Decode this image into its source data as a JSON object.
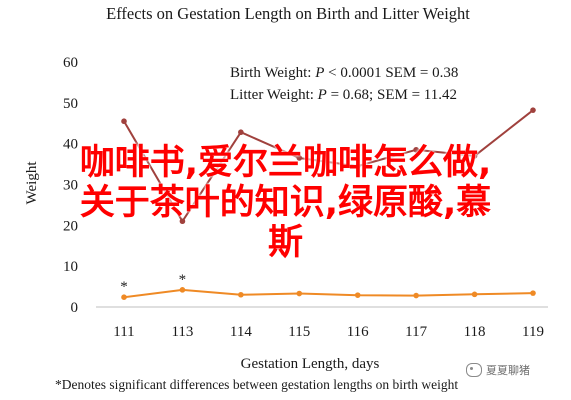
{
  "chart_data": {
    "type": "line",
    "title": "Effects on Gestation Length on Birth and Litter Weight",
    "xlabel": "Gestation Length, days",
    "ylabel": "Weight",
    "x_ticks": [
      "111",
      "113",
      "114",
      "115",
      "116",
      "117",
      "118",
      "119"
    ],
    "x_positions": [
      111,
      113,
      114,
      115,
      116,
      117,
      118,
      119
    ],
    "ylim": [
      0,
      60
    ],
    "y_ticks": [
      0,
      10,
      20,
      30,
      40,
      50,
      60
    ],
    "grid": false,
    "legend_position": "top-right",
    "stats_box": {
      "line1_prefix": "Birth Weight: ",
      "line1_var": "P",
      "line1_suffix": " < 0.0001 SEM = 0.38",
      "line2_prefix": "Litter Weight: ",
      "line2_var": "P",
      "line2_suffix": " = 0.68; SEM = 11.42"
    },
    "series": [
      {
        "name": "Litter Weight",
        "color": "#a0413d",
        "values": [
          45.5,
          21.0,
          42.8,
          36.5,
          34.5,
          38.5,
          37.0,
          48.2
        ]
      },
      {
        "name": "Birth Weight",
        "color": "#ef8a25",
        "values": [
          2.4,
          4.2,
          3.0,
          3.3,
          2.9,
          2.8,
          3.1,
          3.4
        ]
      }
    ],
    "annotations": [
      {
        "text": "*",
        "x": 111,
        "y": 2.4
      },
      {
        "text": "*",
        "x": 113,
        "y": 4.2
      }
    ],
    "footnote": "*Denotes significant differences between gestation lengths on birth weight"
  },
  "watermark": {
    "overlay_lines": [
      "咖啡书,爱尔兰咖啡怎么做,",
      "关于茶叶的知识,绿原酸,慕",
      "斯"
    ],
    "corner_text": "夏夏聊猪"
  }
}
